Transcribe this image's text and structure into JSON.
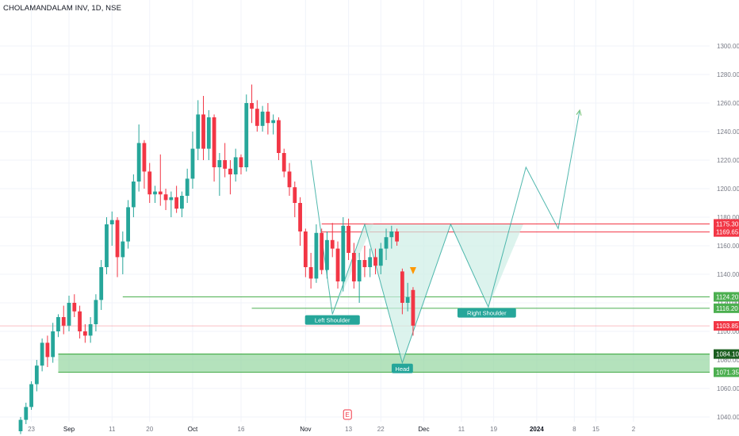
{
  "header": {
    "symbol_line": "CHOLAMANDALAM INV, 1D, NSE"
  },
  "colors": {
    "up": "#26a69a",
    "down": "#f23645",
    "grid": "#f0f3fa",
    "axis_text": "#787b86",
    "pattern_line": "#26a69a",
    "pattern_fill": "#cdeee6",
    "zone_fill": "#9bd8a6",
    "zone_line": "#4caf50",
    "resistance": "#f23645",
    "support": "#4caf50",
    "arrow": "#81c784",
    "marker": "#ff9800"
  },
  "chart_data": {
    "type": "candlestick",
    "title": "CHOLAMANDALAM INV, 1D, NSE",
    "ylim": [
      1030,
      1310
    ],
    "y_ticks": [
      1040,
      1060,
      1080,
      1100,
      1120,
      1140,
      1160,
      1180,
      1200,
      1220,
      1240,
      1260,
      1280,
      1300
    ],
    "y_tick_labels": [
      "1040.00",
      "1060.00",
      "1080.00",
      "1100.00",
      "1120.00",
      "1140.00",
      "1160.00",
      "1180.00",
      "1200.00",
      "1220.00",
      "1240.00",
      "1260.00",
      "1280.00",
      "1300.00"
    ],
    "x_ticks": [
      {
        "bar": 2,
        "label": "23"
      },
      {
        "bar": 9,
        "label": "Sep"
      },
      {
        "bar": 17,
        "label": "11"
      },
      {
        "bar": 24,
        "label": "20"
      },
      {
        "bar": 32,
        "label": "Oct"
      },
      {
        "bar": 41,
        "label": "16"
      },
      {
        "bar": 53,
        "label": "Nov"
      },
      {
        "bar": 61,
        "label": "13"
      },
      {
        "bar": 67,
        "label": "22"
      },
      {
        "bar": 75,
        "label": "Dec"
      },
      {
        "bar": 82,
        "label": "11"
      },
      {
        "bar": 88,
        "label": "19"
      },
      {
        "bar": 96,
        "label": "2024"
      },
      {
        "bar": 103,
        "label": "8"
      },
      {
        "bar": 107,
        "label": "15"
      },
      {
        "bar": 114,
        "label": "2"
      }
    ],
    "candles": [
      [
        1030,
        1040,
        1028,
        1038
      ],
      [
        1038,
        1050,
        1035,
        1047
      ],
      [
        1047,
        1065,
        1045,
        1063
      ],
      [
        1063,
        1080,
        1058,
        1076
      ],
      [
        1076,
        1095,
        1072,
        1092
      ],
      [
        1092,
        1097,
        1075,
        1082
      ],
      [
        1082,
        1106,
        1078,
        1100
      ],
      [
        1100,
        1112,
        1096,
        1110
      ],
      [
        1110,
        1118,
        1098,
        1104
      ],
      [
        1104,
        1125,
        1100,
        1120
      ],
      [
        1120,
        1126,
        1110,
        1114
      ],
      [
        1114,
        1118,
        1095,
        1100
      ],
      [
        1100,
        1105,
        1092,
        1097
      ],
      [
        1097,
        1110,
        1092,
        1105
      ],
      [
        1105,
        1126,
        1100,
        1122
      ],
      [
        1122,
        1150,
        1115,
        1145
      ],
      [
        1145,
        1180,
        1140,
        1175
      ],
      [
        1175,
        1184,
        1160,
        1178
      ],
      [
        1178,
        1180,
        1138,
        1152
      ],
      [
        1152,
        1170,
        1140,
        1163
      ],
      [
        1163,
        1192,
        1158,
        1187
      ],
      [
        1187,
        1210,
        1180,
        1205
      ],
      [
        1205,
        1245,
        1198,
        1232
      ],
      [
        1232,
        1234,
        1200,
        1212
      ],
      [
        1212,
        1218,
        1190,
        1196
      ],
      [
        1196,
        1202,
        1190,
        1198
      ],
      [
        1198,
        1224,
        1188,
        1196
      ],
      [
        1196,
        1200,
        1185,
        1192
      ],
      [
        1192,
        1198,
        1180,
        1194
      ],
      [
        1194,
        1202,
        1183,
        1186
      ],
      [
        1186,
        1198,
        1180,
        1195
      ],
      [
        1195,
        1214,
        1190,
        1207
      ],
      [
        1207,
        1240,
        1200,
        1228
      ],
      [
        1228,
        1262,
        1220,
        1252
      ],
      [
        1252,
        1265,
        1220,
        1228
      ],
      [
        1228,
        1255,
        1220,
        1250
      ],
      [
        1250,
        1252,
        1205,
        1215
      ],
      [
        1215,
        1225,
        1195,
        1220
      ],
      [
        1220,
        1232,
        1208,
        1214
      ],
      [
        1214,
        1220,
        1196,
        1210
      ],
      [
        1210,
        1228,
        1205,
        1222
      ],
      [
        1222,
        1224,
        1210,
        1215
      ],
      [
        1215,
        1266,
        1212,
        1260
      ],
      [
        1260,
        1273,
        1246,
        1256
      ],
      [
        1256,
        1262,
        1240,
        1244
      ],
      [
        1244,
        1258,
        1240,
        1254
      ],
      [
        1254,
        1260,
        1238,
        1246
      ],
      [
        1246,
        1252,
        1238,
        1248
      ],
      [
        1248,
        1250,
        1220,
        1225
      ],
      [
        1225,
        1228,
        1208,
        1212
      ],
      [
        1212,
        1218,
        1195,
        1201
      ],
      [
        1201,
        1205,
        1180,
        1190
      ],
      [
        1190,
        1194,
        1160,
        1170
      ],
      [
        1170,
        1172,
        1138,
        1145
      ],
      [
        1145,
        1155,
        1130,
        1137
      ],
      [
        1137,
        1175,
        1134,
        1169
      ],
      [
        1169,
        1172,
        1140,
        1143
      ],
      [
        1143,
        1170,
        1137,
        1164
      ],
      [
        1164,
        1176,
        1152,
        1158
      ],
      [
        1158,
        1163,
        1130,
        1135
      ],
      [
        1135,
        1180,
        1128,
        1174
      ],
      [
        1174,
        1179,
        1150,
        1155
      ],
      [
        1155,
        1162,
        1130,
        1135
      ],
      [
        1135,
        1155,
        1120,
        1150
      ],
      [
        1150,
        1160,
        1138,
        1145
      ],
      [
        1145,
        1158,
        1138,
        1152
      ],
      [
        1152,
        1158,
        1140,
        1146
      ],
      [
        1146,
        1162,
        1140,
        1158
      ],
      [
        1158,
        1172,
        1150,
        1166
      ],
      [
        1166,
        1174,
        1158,
        1170
      ],
      [
        1170,
        1172,
        1160,
        1163
      ],
      [
        1142,
        1144,
        1112,
        1120
      ],
      [
        1120,
        1134,
        1114,
        1124
      ],
      [
        1129,
        1131,
        1097,
        1104
      ]
    ],
    "horizontal_levels": [
      {
        "value": 1175.3,
        "label": "1175.30",
        "kind": "resistance"
      },
      {
        "value": 1169.65,
        "label": "1169.65",
        "kind": "resistance"
      },
      {
        "value": 1124.2,
        "label": "1124.20",
        "kind": "support"
      },
      {
        "value": 1116.2,
        "label": "1116.20",
        "kind": "support"
      },
      {
        "value": 1103.85,
        "label": "1103.85",
        "kind": "price"
      },
      {
        "value": 1084.1,
        "label": "1084.10",
        "kind": "zone"
      },
      {
        "value": 1071.35,
        "label": "1071.35",
        "kind": "zone"
      }
    ],
    "hidden_tick_label": "1120.00",
    "annotations": [
      {
        "text": "Left Shoulder"
      },
      {
        "text": "Head"
      },
      {
        "text": "Right Shoulder"
      }
    ],
    "event_marker": "E",
    "pattern_path": [
      [
        54,
        1220
      ],
      [
        58,
        1112
      ],
      [
        64,
        1175
      ],
      [
        71,
        1078
      ],
      [
        80,
        1175
      ],
      [
        87,
        1117
      ],
      [
        94,
        1215
      ],
      [
        100,
        1172
      ],
      [
        104,
        1255
      ]
    ]
  }
}
